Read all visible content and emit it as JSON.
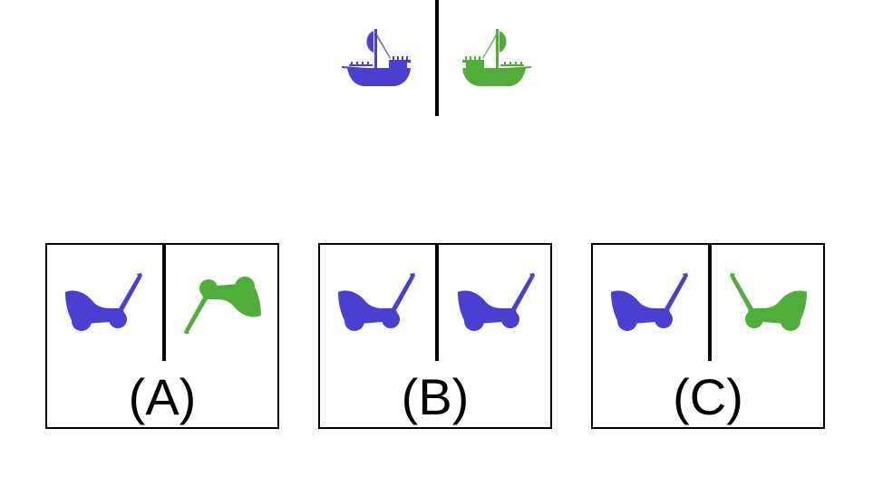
{
  "colors": {
    "blue": "#4b3fd1",
    "green": "#4fae3a",
    "border": "#000000"
  },
  "prompt": {
    "left_icon": "ship-icon",
    "right_icon": "ship-icon"
  },
  "options": [
    {
      "label": "(A)",
      "left_icon": "cart-icon",
      "right_icon": "cart-icon"
    },
    {
      "label": "(B)",
      "left_icon": "cart-icon",
      "right_icon": "cart-icon"
    },
    {
      "label": "(C)",
      "left_icon": "cart-icon",
      "right_icon": "cart-icon"
    }
  ]
}
